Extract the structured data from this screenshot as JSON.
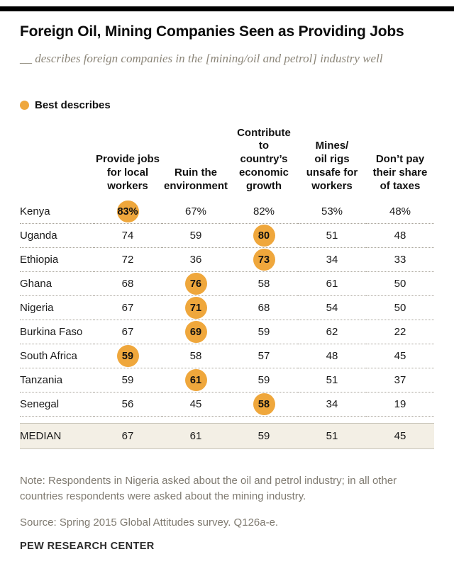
{
  "header": {
    "title": "Foreign Oil, Mining Companies Seen as Providing Jobs",
    "subtitle": "__ describes foreign companies in the [mining/oil and petrol] industry well"
  },
  "legend": {
    "label": "Best describes"
  },
  "chart_data": {
    "type": "table",
    "columns": [
      "Provide jobs\nfor local\nworkers",
      "Ruin the\nenvironment",
      "Contribute to\ncountry’s\neconomic\ngrowth",
      "Mines/\noil rigs\nunsafe for\nworkers",
      "Don’t pay\ntheir share\nof taxes"
    ],
    "rows": [
      {
        "label": "Kenya",
        "values": [
          83,
          67,
          82,
          53,
          48
        ],
        "highlight": 0,
        "percent": true
      },
      {
        "label": "Uganda",
        "values": [
          74,
          59,
          80,
          51,
          48
        ],
        "highlight": 2
      },
      {
        "label": "Ethiopia",
        "values": [
          72,
          36,
          73,
          34,
          33
        ],
        "highlight": 2
      },
      {
        "label": "Ghana",
        "values": [
          68,
          76,
          58,
          61,
          50
        ],
        "highlight": 1
      },
      {
        "label": "Nigeria",
        "values": [
          67,
          71,
          68,
          54,
          50
        ],
        "highlight": 1
      },
      {
        "label": "Burkina Faso",
        "values": [
          67,
          69,
          59,
          62,
          22
        ],
        "highlight": 1
      },
      {
        "label": "South Africa",
        "values": [
          59,
          58,
          57,
          48,
          45
        ],
        "highlight": 0
      },
      {
        "label": "Tanzania",
        "values": [
          59,
          61,
          59,
          51,
          37
        ],
        "highlight": 1
      },
      {
        "label": "Senegal",
        "values": [
          56,
          45,
          58,
          34,
          19
        ],
        "highlight": 2
      }
    ],
    "median_row": {
      "label": "MEDIAN",
      "values": [
        67,
        61,
        59,
        51,
        45
      ]
    },
    "highlight_meaning": "Best describes",
    "accent_color": "#efa73c"
  },
  "footer": {
    "note": "Note: Respondents in Nigeria asked about the oil and petrol industry; in all other countries respondents were asked about the mining industry.",
    "source": "Source: Spring 2015 Global Attitudes survey. Q126a-e.",
    "brand": "PEW RESEARCH CENTER"
  }
}
